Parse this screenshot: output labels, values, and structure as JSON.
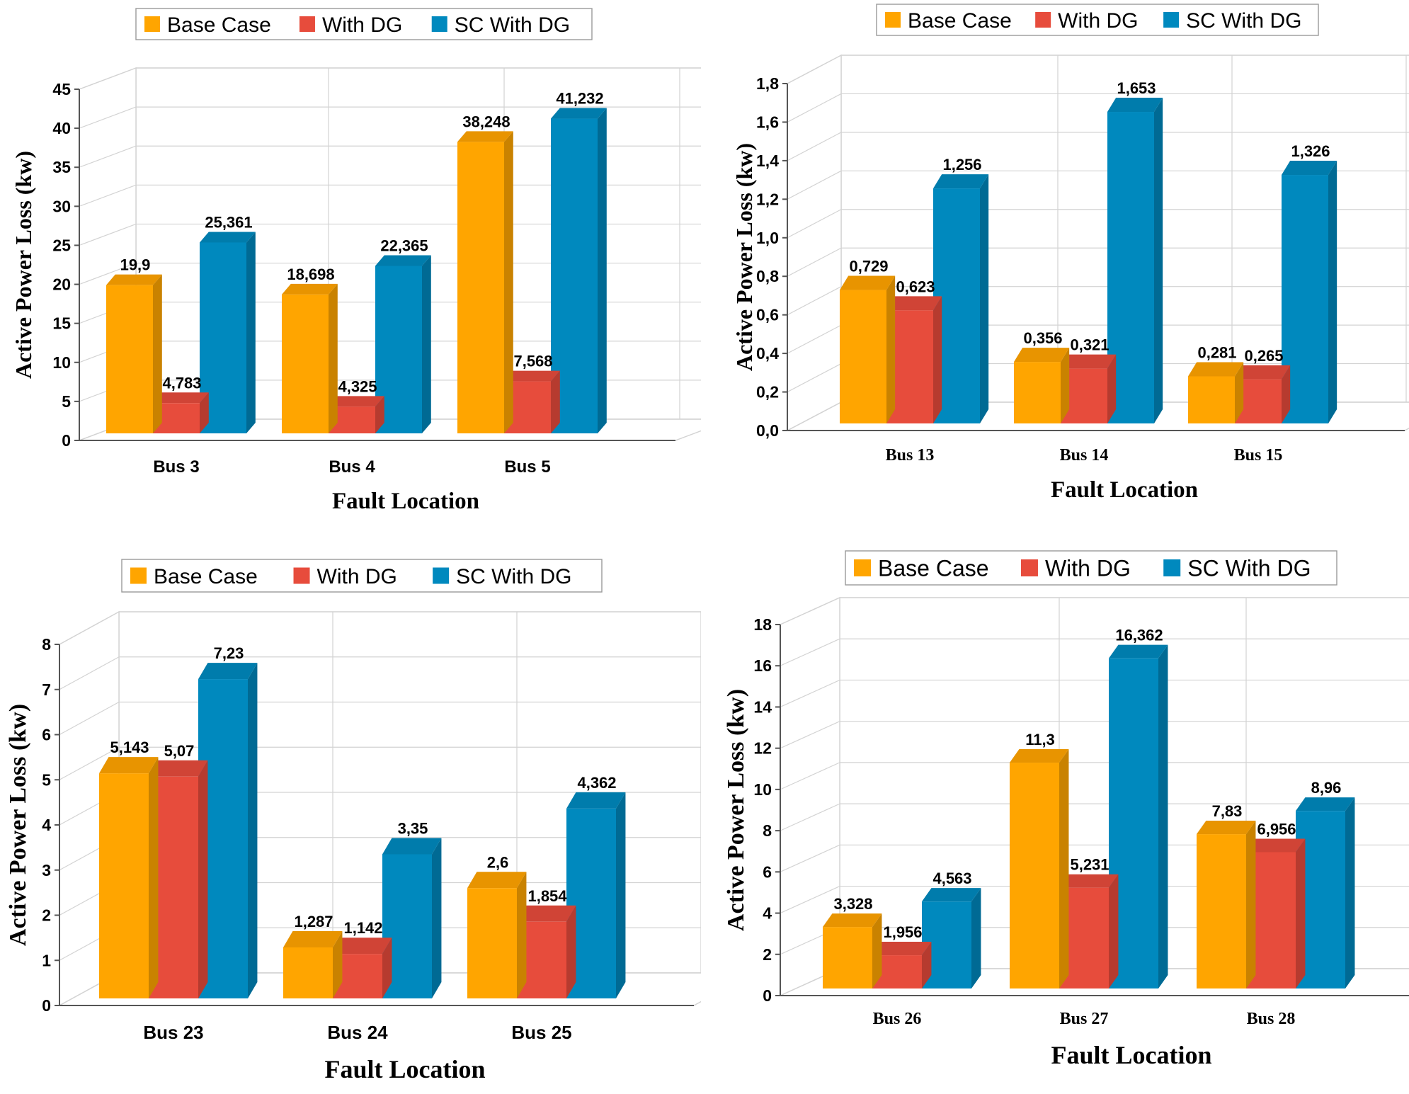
{
  "legend_labels": [
    "Base Case",
    "With DG",
    "SC With DG"
  ],
  "colors": {
    "base": "#FFA500",
    "base_side": "#C98200",
    "base_top": "#E89400",
    "dg": "#E74C3C",
    "dg_side": "#B63B2F",
    "dg_top": "#D04436",
    "sc": "#0089BE",
    "sc_side": "#006A94",
    "sc_top": "#007CAC",
    "grid": "#D3D3D3",
    "axis": "#555555"
  },
  "chart_data": [
    {
      "type": "bar",
      "categories": [
        "Bus 3",
        "Bus 4",
        "Bus 5"
      ],
      "series": [
        {
          "name": "Base Case",
          "values": [
            19.9,
            18.698,
            38.248
          ],
          "labels": [
            "19,9",
            "18,698",
            "38,248"
          ]
        },
        {
          "name": "With DG",
          "values": [
            4.783,
            4.325,
            7.568
          ],
          "labels": [
            "4,783",
            "4,325",
            "7,568"
          ]
        },
        {
          "name": "SC With DG",
          "values": [
            25.361,
            22.365,
            41.232
          ],
          "labels": [
            "25,361",
            "22,365",
            "41,232"
          ]
        }
      ],
      "ylim": [
        0,
        45
      ],
      "yticks": [
        0,
        5,
        10,
        15,
        20,
        25,
        30,
        35,
        40,
        45
      ],
      "ytick_labels": [
        "0",
        "5",
        "10",
        "15",
        "20",
        "25",
        "30",
        "35",
        "40",
        "45"
      ],
      "xlabel": "Fault Location",
      "ylabel": "Active Power Loss (kw)",
      "legend": "top",
      "grid": true
    },
    {
      "type": "bar",
      "categories": [
        "Bus 13",
        "Bus 14",
        "Bus 15"
      ],
      "series": [
        {
          "name": "Base Case",
          "values": [
            0.729,
            0.356,
            0.281
          ],
          "labels": [
            "0,729",
            "0,356",
            "0,281"
          ]
        },
        {
          "name": "With DG",
          "values": [
            0.623,
            0.321,
            0.265
          ],
          "labels": [
            "0,623",
            "0,321",
            "0,265"
          ]
        },
        {
          "name": "SC With DG",
          "values": [
            1.256,
            1.653,
            1.326
          ],
          "labels": [
            "1,256",
            "1,653",
            "1,326"
          ]
        }
      ],
      "ylim": [
        0,
        1.8
      ],
      "yticks": [
        0,
        0.2,
        0.4,
        0.6,
        0.8,
        1.0,
        1.2,
        1.4,
        1.6,
        1.8
      ],
      "ytick_labels": [
        "0,0",
        "0,2",
        "0,4",
        "0,6",
        "0,8",
        "1,0",
        "1,2",
        "1,4",
        "1,6",
        "1,8"
      ],
      "xlabel": "Fault Location",
      "ylabel": "Active Power Loss (kw)",
      "legend": "top",
      "grid": true
    },
    {
      "type": "bar",
      "categories": [
        "Bus 23",
        "Bus 24",
        "Bus 25"
      ],
      "series": [
        {
          "name": "Base Case",
          "values": [
            5.143,
            1.287,
            2.6
          ],
          "labels": [
            "5,143",
            "1,287",
            "2,6"
          ]
        },
        {
          "name": "With DG",
          "values": [
            5.07,
            1.142,
            1.854
          ],
          "labels": [
            "5,07",
            "1,142",
            "1,854"
          ]
        },
        {
          "name": "SC With DG",
          "values": [
            7.23,
            3.35,
            4.362
          ],
          "labels": [
            "7,23",
            "3,35",
            "4,362"
          ]
        }
      ],
      "ylim": [
        0,
        8
      ],
      "yticks": [
        0,
        1,
        2,
        3,
        4,
        5,
        6,
        7,
        8
      ],
      "ytick_labels": [
        "0",
        "1",
        "2",
        "3",
        "4",
        "5",
        "6",
        "7",
        "8"
      ],
      "xlabel": "Fault Location",
      "ylabel": "Active Power Loss (kw)",
      "legend": "top",
      "grid": true
    },
    {
      "type": "bar",
      "categories": [
        "Bus 26",
        "Bus 27",
        "Bus 28"
      ],
      "series": [
        {
          "name": "Base Case",
          "values": [
            3.328,
            11.3,
            7.83
          ],
          "labels": [
            "3,328",
            "11,3",
            "7,83"
          ]
        },
        {
          "name": "With DG",
          "values": [
            1.956,
            5.231,
            6.956
          ],
          "labels": [
            "1,956",
            "5,231",
            "6,956"
          ]
        },
        {
          "name": "SC With DG",
          "values": [
            4.563,
            16.362,
            8.96
          ],
          "labels": [
            "4,563",
            "16,362",
            "8,96"
          ]
        }
      ],
      "ylim": [
        0,
        18
      ],
      "yticks": [
        0,
        2,
        4,
        6,
        8,
        10,
        12,
        14,
        16,
        18
      ],
      "ytick_labels": [
        "0",
        "2",
        "4",
        "6",
        "8",
        "10",
        "12",
        "14",
        "16",
        "18"
      ],
      "xlabel": "Fault Location",
      "ylabel": "Active Power Loss (kw)",
      "legend": "top",
      "grid": true
    }
  ]
}
